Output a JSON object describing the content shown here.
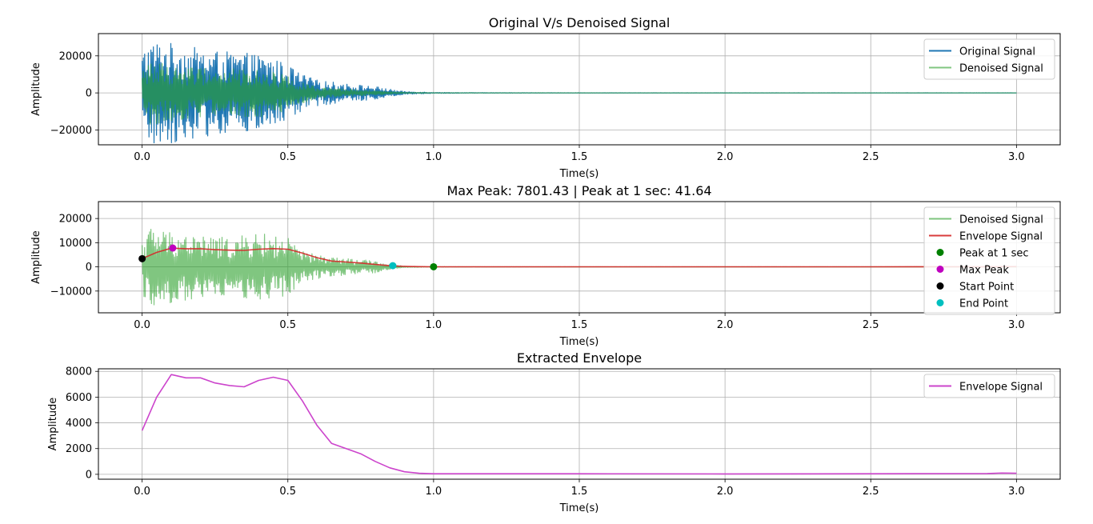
{
  "chart_data": [
    {
      "type": "line",
      "title": "Original V/s Denoised Signal",
      "xlabel": "Time(s)",
      "ylabel": "Amplitude",
      "xlim": [
        -0.15,
        3.15
      ],
      "ylim": [
        -28000,
        32000
      ],
      "xticks": [
        0.0,
        0.5,
        1.0,
        1.5,
        2.0,
        2.5,
        3.0
      ],
      "xtick_labels": [
        "0.0",
        "0.5",
        "1.0",
        "1.5",
        "2.0",
        "2.5",
        "3.0"
      ],
      "yticks": [
        -20000,
        0,
        20000
      ],
      "ytick_labels": [
        "−20000",
        "0",
        "20000"
      ],
      "grid": true,
      "legend_position": "upper right",
      "series": [
        {
          "name": "Original Signal",
          "color": "#1f77b4",
          "kind": "noisy",
          "envelope_x": [
            0.0,
            0.02,
            0.05,
            0.1,
            0.2,
            0.3,
            0.4,
            0.45,
            0.5,
            0.55,
            0.6,
            0.7,
            0.8,
            0.85,
            0.9,
            1.0,
            1.1,
            1.5,
            2.0,
            3.0
          ],
          "envelope_y": [
            22000,
            28000,
            28500,
            27000,
            24000,
            22000,
            21000,
            19000,
            15000,
            10000,
            7000,
            5000,
            3500,
            2000,
            800,
            300,
            150,
            80,
            60,
            50
          ]
        },
        {
          "name": "Denoised Signal",
          "color": "#2ca02c",
          "opacity": 0.6,
          "kind": "noisy",
          "envelope_x": [
            0.0,
            0.02,
            0.05,
            0.1,
            0.2,
            0.3,
            0.4,
            0.45,
            0.5,
            0.55,
            0.6,
            0.7,
            0.8,
            0.85,
            0.9,
            1.0,
            1.1,
            1.5,
            2.0,
            3.0
          ],
          "envelope_y": [
            10000,
            18000,
            17000,
            15000,
            14000,
            13000,
            13000,
            12000,
            9000,
            6000,
            3000,
            2000,
            1200,
            700,
            300,
            100,
            60,
            40,
            30,
            25
          ]
        }
      ]
    },
    {
      "type": "line",
      "title": "Max Peak: 7801.43 | Peak at 1 sec: 41.64",
      "xlabel": "Time(s)",
      "ylabel": "Amplitude",
      "xlim": [
        -0.15,
        3.15
      ],
      "ylim": [
        -19000,
        27000
      ],
      "xticks": [
        0.0,
        0.5,
        1.0,
        1.5,
        2.0,
        2.5,
        3.0
      ],
      "xtick_labels": [
        "0.0",
        "0.5",
        "1.0",
        "1.5",
        "2.0",
        "2.5",
        "3.0"
      ],
      "yticks": [
        -10000,
        0,
        10000,
        20000
      ],
      "ytick_labels": [
        "−10000",
        "0",
        "10000",
        "20000"
      ],
      "grid": true,
      "legend_position": "upper right",
      "series": [
        {
          "name": "Denoised Signal",
          "color": "#2ca02c",
          "opacity": 0.6,
          "kind": "noisy",
          "envelope_x": [
            0.0,
            0.02,
            0.05,
            0.1,
            0.2,
            0.3,
            0.4,
            0.45,
            0.5,
            0.55,
            0.6,
            0.7,
            0.8,
            0.85,
            0.9,
            1.0,
            1.1,
            1.5,
            2.0,
            3.0
          ],
          "envelope_y": [
            11000,
            17000,
            16000,
            15000,
            13000,
            12000,
            14000,
            13000,
            12000,
            6500,
            5000,
            3500,
            2500,
            1000,
            300,
            100,
            60,
            40,
            30,
            25
          ]
        },
        {
          "name": "Envelope Signal",
          "color": "#d62728",
          "opacity": 0.9,
          "kind": "line",
          "x": [
            0.0,
            0.05,
            0.1,
            0.15,
            0.2,
            0.25,
            0.3,
            0.35,
            0.4,
            0.45,
            0.5,
            0.55,
            0.6,
            0.65,
            0.7,
            0.75,
            0.8,
            0.85,
            0.9,
            0.95,
            1.0,
            1.5,
            2.0,
            2.5,
            2.9,
            2.95,
            3.0
          ],
          "y": [
            3400,
            6000,
            7750,
            7500,
            7500,
            7100,
            6900,
            6800,
            7300,
            7550,
            7300,
            5700,
            3800,
            2400,
            2000,
            1600,
            1000,
            500,
            200,
            80,
            42,
            40,
            30,
            40,
            60,
            100,
            80
          ]
        }
      ],
      "points": [
        {
          "name": "Peak at 1 sec",
          "x": 1.0,
          "y": 41.64,
          "color": "#008000"
        },
        {
          "name": "Max Peak",
          "x": 0.105,
          "y": 7801.43,
          "color": "#bf00bf"
        },
        {
          "name": "Start Point",
          "x": 0.0,
          "y": 3400,
          "color": "#000000"
        },
        {
          "name": "End Point",
          "x": 0.86,
          "y": 500,
          "color": "#00bfbf"
        }
      ]
    },
    {
      "type": "line",
      "title": "Extracted Envelope",
      "xlabel": "Time(s)",
      "ylabel": "Amplitude",
      "xlim": [
        -0.15,
        3.15
      ],
      "ylim": [
        -380,
        8200
      ],
      "xticks": [
        0.0,
        0.5,
        1.0,
        1.5,
        2.0,
        2.5,
        3.0
      ],
      "xtick_labels": [
        "0.0",
        "0.5",
        "1.0",
        "1.5",
        "2.0",
        "2.5",
        "3.0"
      ],
      "yticks": [
        0,
        2000,
        4000,
        6000,
        8000
      ],
      "ytick_labels": [
        "0",
        "2000",
        "4000",
        "6000",
        "8000"
      ],
      "grid": true,
      "legend_position": "upper right",
      "series": [
        {
          "name": "Envelope Signal",
          "color": "#cc44cc",
          "kind": "line",
          "x": [
            0.0,
            0.05,
            0.1,
            0.15,
            0.2,
            0.25,
            0.3,
            0.35,
            0.4,
            0.45,
            0.5,
            0.55,
            0.6,
            0.65,
            0.7,
            0.75,
            0.8,
            0.85,
            0.9,
            0.95,
            1.0,
            1.5,
            2.0,
            2.5,
            2.9,
            2.95,
            3.0
          ],
          "y": [
            3400,
            6000,
            7750,
            7500,
            7500,
            7100,
            6900,
            6800,
            7300,
            7550,
            7300,
            5700,
            3800,
            2400,
            2000,
            1600,
            1000,
            500,
            200,
            80,
            42,
            40,
            30,
            40,
            60,
            100,
            80
          ]
        }
      ]
    }
  ]
}
